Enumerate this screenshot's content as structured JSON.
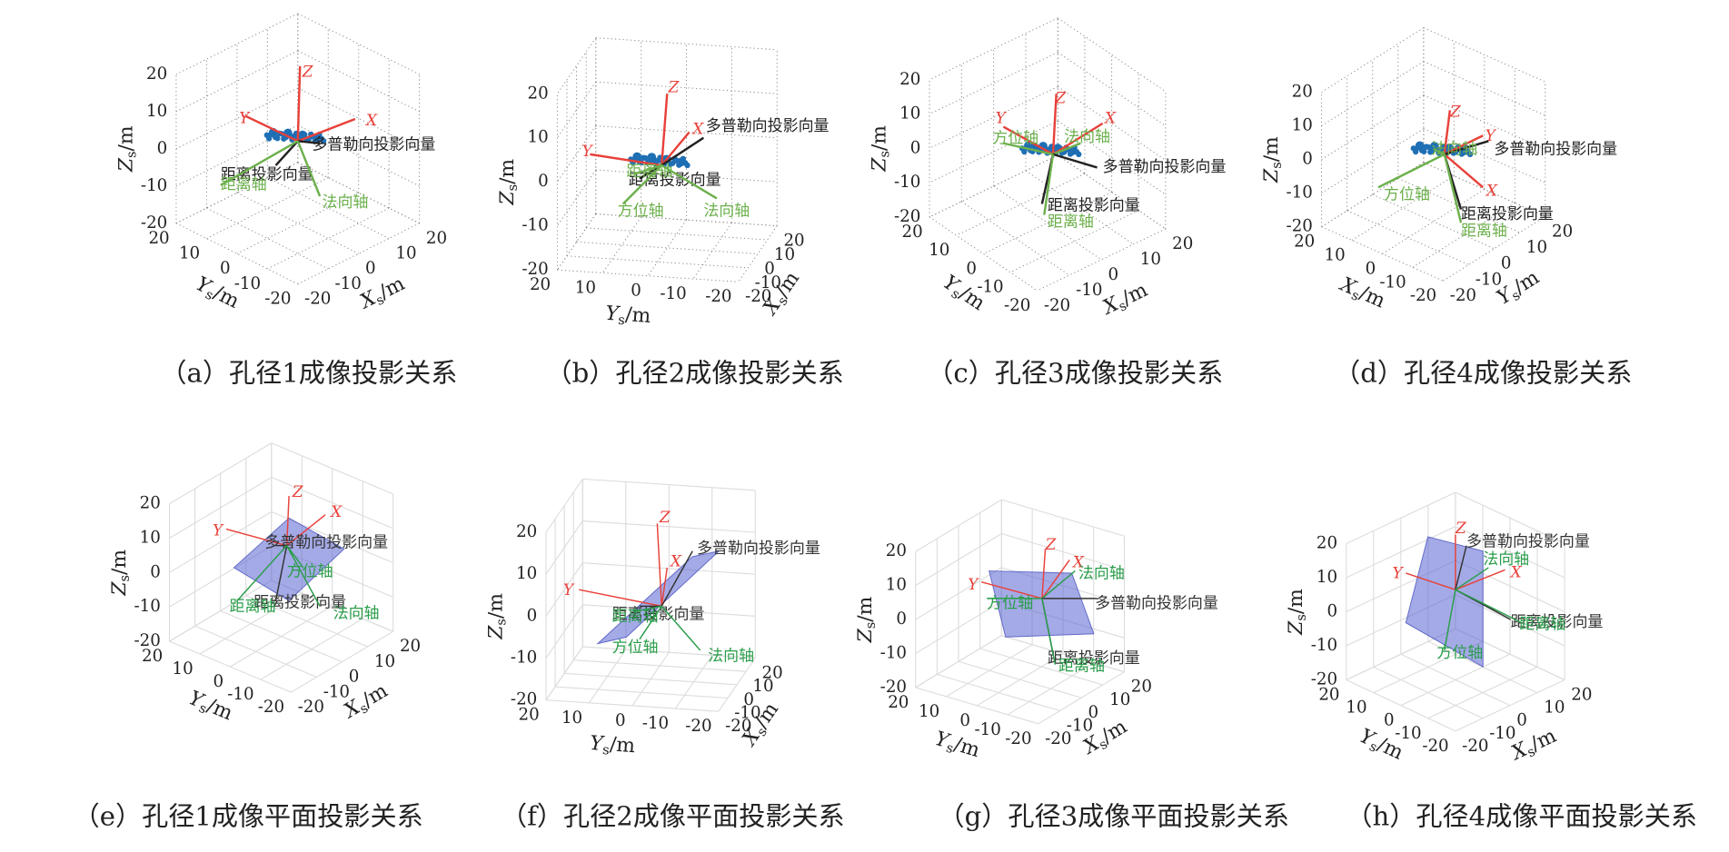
{
  "ticks": [
    20,
    10,
    0,
    -10,
    -20
  ],
  "panels": [
    {
      "caption": "（a）孔径1成像投影关系",
      "z_axis": {
        "main": "Z",
        "sub": "s",
        "unit": "/m"
      },
      "left_axis": {
        "main": "Y",
        "sub": "s",
        "unit": "/m"
      },
      "right_axis": {
        "main": "X",
        "sub": "s",
        "unit": "/m"
      },
      "vectors": [
        {
          "label": "Z",
          "color": "#e8413a"
        },
        {
          "label": "X",
          "color": "#e8413a"
        },
        {
          "label": "Y",
          "color": "#e8413a"
        },
        {
          "label": "多普勒向投影向量",
          "color": "#222222"
        },
        {
          "label": "距离投影向量",
          "color": "#222222"
        },
        {
          "label": "距离轴",
          "color": "#6cb04c"
        },
        {
          "label": "法向轴",
          "color": "#6cb04c"
        }
      ]
    },
    {
      "caption": "（b）孔径2成像投影关系",
      "z_axis": {
        "main": "Z",
        "sub": "s",
        "unit": "/m"
      },
      "left_axis": {
        "main": "Y",
        "sub": "s",
        "unit": "/m"
      },
      "right_axis": {
        "main": "X",
        "sub": "s",
        "unit": "/m"
      },
      "vectors": [
        {
          "label": "Z",
          "color": "#e8413a"
        },
        {
          "label": "X",
          "color": "#e8413a"
        },
        {
          "label": "Y",
          "color": "#e8413a"
        },
        {
          "label": "多普勒向投影向量",
          "color": "#222222"
        },
        {
          "label": "距离投影向量",
          "color": "#222222"
        },
        {
          "label": "距离轴",
          "color": "#6cb04c"
        },
        {
          "label": "方位轴",
          "color": "#6cb04c"
        },
        {
          "label": "法向轴",
          "color": "#6cb04c"
        }
      ]
    },
    {
      "caption": "（c）孔径3成像投影关系",
      "z_axis": {
        "main": "Z",
        "sub": "s",
        "unit": "/m"
      },
      "left_axis": {
        "main": "Y",
        "sub": "s",
        "unit": "/m"
      },
      "right_axis": {
        "main": "X",
        "sub": "s",
        "unit": "/m"
      },
      "vectors": [
        {
          "label": "Z",
          "color": "#e8413a"
        },
        {
          "label": "X",
          "color": "#e8413a"
        },
        {
          "label": "Y",
          "color": "#e8413a"
        },
        {
          "label": "法向轴",
          "color": "#6cb04c"
        },
        {
          "label": "方位轴",
          "color": "#6cb04c"
        },
        {
          "label": "多普勒向投影向量",
          "color": "#222222"
        },
        {
          "label": "距离投影向量",
          "color": "#222222"
        },
        {
          "label": "距离轴",
          "color": "#6cb04c"
        }
      ]
    },
    {
      "caption": "（d）孔径4成像投影关系",
      "z_axis": {
        "main": "Z",
        "sub": "s",
        "unit": "/m"
      },
      "left_axis": {
        "main": "X",
        "sub": "s",
        "unit": "/m"
      },
      "right_axis": {
        "main": "Y",
        "sub": "s",
        "unit": "/m"
      },
      "vectors": [
        {
          "label": "Z",
          "color": "#e8413a"
        },
        {
          "label": "Y",
          "color": "#e8413a"
        },
        {
          "label": "X",
          "color": "#e8413a"
        },
        {
          "label": "多普勒向投影向量",
          "color": "#222222"
        },
        {
          "label": "法向轴",
          "color": "#6cb04c"
        },
        {
          "label": "方位轴",
          "color": "#6cb04c"
        },
        {
          "label": "距离投影向量",
          "color": "#222222"
        },
        {
          "label": "距离轴",
          "color": "#6cb04c"
        }
      ]
    },
    {
      "caption": "（e）孔径1成像平面投影关系",
      "z_axis": {
        "main": "Z",
        "sub": "s",
        "unit": "/m"
      },
      "left_axis": {
        "main": "Y",
        "sub": "s",
        "unit": "/m"
      },
      "right_axis": {
        "main": "X",
        "sub": "s",
        "unit": "/m"
      },
      "vectors": [
        {
          "label": "Z",
          "color": "#e8413a"
        },
        {
          "label": "X",
          "color": "#e8413a"
        },
        {
          "label": "Y",
          "color": "#e8413a"
        },
        {
          "label": "多普勒向投影向量",
          "color": "#333333"
        },
        {
          "label": "方位轴",
          "color": "#2a9d4a"
        },
        {
          "label": "距离投影向量",
          "color": "#333333"
        },
        {
          "label": "距离轴",
          "color": "#2a9d4a"
        },
        {
          "label": "法向轴",
          "color": "#2a9d4a"
        }
      ]
    },
    {
      "caption": "（f）孔径2成像平面投影关系",
      "z_axis": {
        "main": "Z",
        "sub": "s",
        "unit": "/m"
      },
      "left_axis": {
        "main": "Y",
        "sub": "s",
        "unit": "/m"
      },
      "right_axis": {
        "main": "X",
        "sub": "s",
        "unit": "/m"
      },
      "vectors": [
        {
          "label": "Z",
          "color": "#e8413a"
        },
        {
          "label": "X",
          "color": "#e8413a"
        },
        {
          "label": "Y",
          "color": "#e8413a"
        },
        {
          "label": "多普勒向投影向量",
          "color": "#333333"
        },
        {
          "label": "距离投影向量",
          "color": "#333333"
        },
        {
          "label": "距离轴",
          "color": "#2a9d4a"
        },
        {
          "label": "方位轴",
          "color": "#2a9d4a"
        },
        {
          "label": "法向轴",
          "color": "#2a9d4a"
        }
      ]
    },
    {
      "caption": "（g）孔径3成像平面投影关系",
      "z_axis": {
        "main": "Z",
        "sub": "s",
        "unit": "/m"
      },
      "left_axis": {
        "main": "Y",
        "sub": "s",
        "unit": "/m"
      },
      "right_axis": {
        "main": "X",
        "sub": "s",
        "unit": "/m"
      },
      "vectors": [
        {
          "label": "Z",
          "color": "#e8413a"
        },
        {
          "label": "X",
          "color": "#e8413a"
        },
        {
          "label": "Y",
          "color": "#e8413a"
        },
        {
          "label": "法向轴",
          "color": "#2a9d4a"
        },
        {
          "label": "方位轴",
          "color": "#2a9d4a"
        },
        {
          "label": "多普勒向投影向量",
          "color": "#333333"
        },
        {
          "label": "距离投影向量",
          "color": "#333333"
        },
        {
          "label": "距离轴",
          "color": "#2a9d4a"
        }
      ]
    },
    {
      "caption": "（h）孔径4成像平面投影关系",
      "z_axis": {
        "main": "Z",
        "sub": "s",
        "unit": "/m"
      },
      "left_axis": {
        "main": "Y",
        "sub": "s",
        "unit": "/m"
      },
      "right_axis": {
        "main": "X",
        "sub": "s",
        "unit": "/m"
      },
      "vectors": [
        {
          "label": "Z",
          "color": "#e8413a"
        },
        {
          "label": "X",
          "color": "#e8413a"
        },
        {
          "label": "Y",
          "color": "#e8413a"
        },
        {
          "label": "多普勒向投影向量",
          "color": "#333333"
        },
        {
          "label": "法向轴",
          "color": "#2a9d4a"
        },
        {
          "label": "距离投影向量",
          "color": "#333333"
        },
        {
          "label": "距离轴",
          "color": "#2a9d4a"
        },
        {
          "label": "方位轴",
          "color": "#2a9d4a"
        }
      ]
    }
  ]
}
